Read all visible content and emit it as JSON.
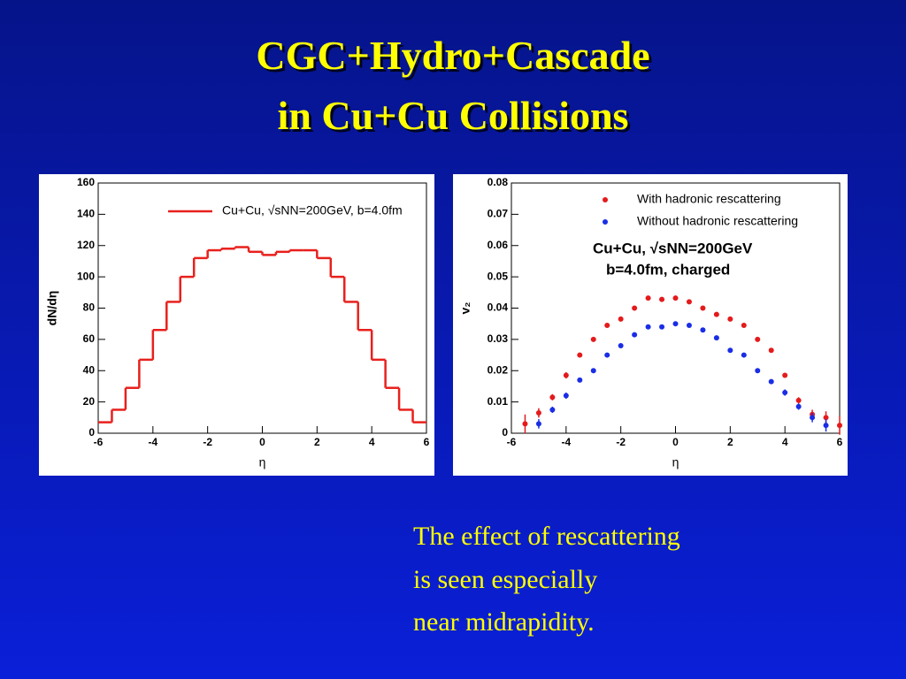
{
  "slide": {
    "title": [
      "CGC+Hydro+Cascade",
      "in Cu+Cu Collisions"
    ],
    "body": [
      "The effect of rescattering",
      "is seen especially",
      "near midrapidity."
    ]
  },
  "chart_data": [
    {
      "type": "histogram",
      "series_name": "Cu+Cu, √sNN=200GeV, b=4.0fm",
      "color": "#e8201c",
      "bins": [
        -6,
        -5.5,
        -5,
        -4.5,
        -4,
        -3.5,
        -3,
        -2.5,
        -2,
        -1.5,
        -1,
        -0.5,
        0,
        0.5,
        1,
        1.5,
        2,
        2.5,
        3,
        3.5,
        4,
        4.5,
        5,
        5.5,
        6
      ],
      "counts": [
        7,
        15,
        29,
        47,
        66,
        84,
        100,
        112,
        117,
        118,
        119,
        116,
        114,
        116,
        117,
        117,
        112,
        100,
        84,
        66,
        47,
        29,
        15,
        7
      ],
      "xlim": [
        -6,
        6
      ],
      "ylim": [
        0,
        160
      ],
      "xticks": [
        -6,
        -4,
        -2,
        0,
        2,
        4,
        6
      ],
      "yticks": [
        0,
        20,
        40,
        60,
        80,
        100,
        120,
        140,
        160
      ],
      "xlabel": "η",
      "ylabel": "dN/dη"
    },
    {
      "type": "scatter",
      "series": [
        {
          "name": "With hadronic rescattering",
          "color": "#e41a1c",
          "x": [
            -5.5,
            -5,
            -4.5,
            -4,
            -3.5,
            -3,
            -2.5,
            -2,
            -1.5,
            -1,
            -0.5,
            0,
            0.5,
            1,
            1.5,
            2,
            2.5,
            3,
            3.5,
            4,
            4.5,
            5,
            5.5,
            6
          ],
          "values": [
            0.003,
            0.0065,
            0.0115,
            0.0185,
            0.025,
            0.03,
            0.0345,
            0.0365,
            0.04,
            0.0432,
            0.0428,
            0.0432,
            0.042,
            0.04,
            0.038,
            0.0365,
            0.0345,
            0.03,
            0.0265,
            0.0185,
            0.0105,
            0.006,
            0.005,
            0.0025
          ],
          "errors": [
            0.003,
            0.0015,
            0.001,
            0.001,
            0.0005,
            0.0005,
            0.0005,
            0.0005,
            0.0005,
            0.0005,
            0.0005,
            0.0005,
            0.0005,
            0.0005,
            0.0005,
            0.0005,
            0.0005,
            0.0005,
            0.0005,
            0.0005,
            0.001,
            0.0015,
            0.002,
            0.003
          ]
        },
        {
          "name": "Without hadronic rescattering",
          "color": "#1a2ee6",
          "x": [
            -5,
            -4.5,
            -4,
            -3.5,
            -3,
            -2.5,
            -2,
            -1.5,
            -1,
            -0.5,
            0,
            0.5,
            1,
            1.5,
            2,
            2.5,
            3,
            3.5,
            4,
            4.5,
            5,
            5.5
          ],
          "values": [
            0.003,
            0.0075,
            0.012,
            0.017,
            0.02,
            0.025,
            0.028,
            0.0315,
            0.034,
            0.034,
            0.035,
            0.0345,
            0.033,
            0.0305,
            0.0265,
            0.025,
            0.02,
            0.0165,
            0.013,
            0.0085,
            0.005,
            0.0025
          ],
          "errors": [
            0.0015,
            0.001,
            0.001,
            0.0005,
            0.0005,
            0.0005,
            0.0005,
            0.0005,
            0.0005,
            0.0005,
            0.0005,
            0.0005,
            0.0005,
            0.0005,
            0.0005,
            0.0005,
            0.0005,
            0.0005,
            0.001,
            0.001,
            0.0015,
            0.002
          ]
        }
      ],
      "xlim": [
        -6,
        6
      ],
      "ylim": [
        0,
        0.08
      ],
      "xticks": [
        -6,
        -4,
        -2,
        0,
        2,
        4,
        6
      ],
      "yticks": [
        0,
        0.01,
        0.02,
        0.03,
        0.04,
        0.05,
        0.06,
        0.07,
        0.08
      ],
      "xlabel": "η",
      "ylabel": "v₂",
      "annotations": [
        "Cu+Cu, √sNN=200GeV",
        "b=4.0fm, charged"
      ]
    }
  ]
}
